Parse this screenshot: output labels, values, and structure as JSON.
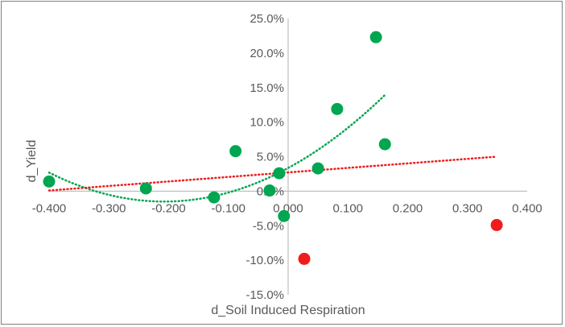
{
  "chart_data": {
    "type": "scatter",
    "title": "",
    "xlabel": "d_Soil Induced Respiration",
    "ylabel": "d_Yield",
    "xlim": [
      -0.4,
      0.4
    ],
    "ylim": [
      -15,
      25
    ],
    "x_ticks": [
      "-0.400",
      "-0.300",
      "-0.200",
      "-0.100",
      "0.000",
      "0.100",
      "0.200",
      "0.300",
      "0.400"
    ],
    "y_ticks": [
      "-15.0%",
      "-10.0%",
      "-5.0%",
      "0.0%",
      "5.0%",
      "10.0%",
      "15.0%",
      "20.0%",
      "25.0%"
    ],
    "grid": false,
    "legend": "none",
    "series": [
      {
        "color": "#00a650",
        "points": [
          {
            "x": -0.4,
            "y": 1.4
          },
          {
            "x": -0.238,
            "y": 0.4
          },
          {
            "x": -0.124,
            "y": -0.9
          },
          {
            "x": -0.088,
            "y": 5.8
          },
          {
            "x": -0.031,
            "y": 0.1
          },
          {
            "x": -0.015,
            "y": 2.6
          },
          {
            "x": -0.007,
            "y": -3.6
          },
          {
            "x": 0.05,
            "y": 3.3
          },
          {
            "x": 0.082,
            "y": 11.9
          },
          {
            "x": 0.147,
            "y": 22.3
          },
          {
            "x": 0.162,
            "y": 6.8
          }
        ],
        "trendline": {
          "type": "polynomial",
          "color": "#00a650",
          "x_range": [
            -0.4,
            0.162
          ],
          "coefficients": [
            113.1,
            46.9,
            3.36
          ]
        }
      },
      {
        "color": "#ee1c1c",
        "points": [
          {
            "x": 0.027,
            "y": -9.8
          },
          {
            "x": 0.349,
            "y": -4.9
          }
        ],
        "trendline": {
          "type": "linear",
          "color": "#ee1c1c",
          "x_range": [
            -0.4,
            0.349
          ],
          "y_range": [
            0.1,
            5.0
          ]
        }
      }
    ]
  }
}
